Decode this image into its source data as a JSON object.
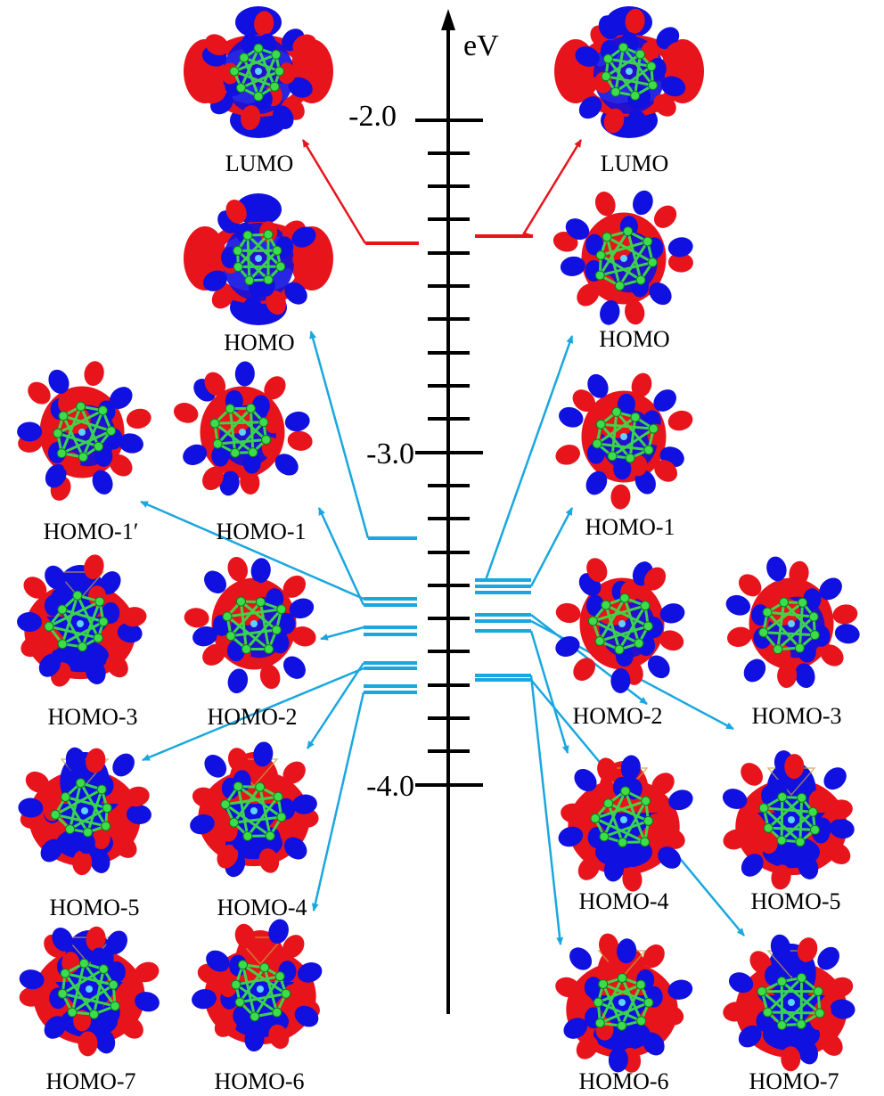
{
  "axis": {
    "unit": "eV",
    "tick_labels": [
      "-2.0",
      "-3.0",
      "-4.0"
    ]
  },
  "colors": {
    "axis": "#000000",
    "lumo": "#e8141c",
    "occupied": "#1aa7df",
    "lobe_positive": "#e8141c",
    "lobe_negative": "#1010e0",
    "bond": "#3ddc4a"
  },
  "left_panel": {
    "orbitals": [
      {
        "label": "LUMO"
      },
      {
        "label": "HOMO"
      },
      {
        "label": "HOMO-1′"
      },
      {
        "label": "HOMO-1"
      },
      {
        "label": "HOMO-3"
      },
      {
        "label": "HOMO-2"
      },
      {
        "label": "HOMO-5"
      },
      {
        "label": "HOMO-4"
      },
      {
        "label": "HOMO-7"
      },
      {
        "label": "HOMO-6"
      }
    ]
  },
  "right_panel": {
    "orbitals": [
      {
        "label": "LUMO"
      },
      {
        "label": "HOMO"
      },
      {
        "label": "HOMO-1"
      },
      {
        "label": "HOMO-2"
      },
      {
        "label": "HOMO-3"
      },
      {
        "label": "HOMO-4"
      },
      {
        "label": "HOMO-5"
      },
      {
        "label": "HOMO-6"
      },
      {
        "label": "HOMO-7"
      }
    ]
  }
}
